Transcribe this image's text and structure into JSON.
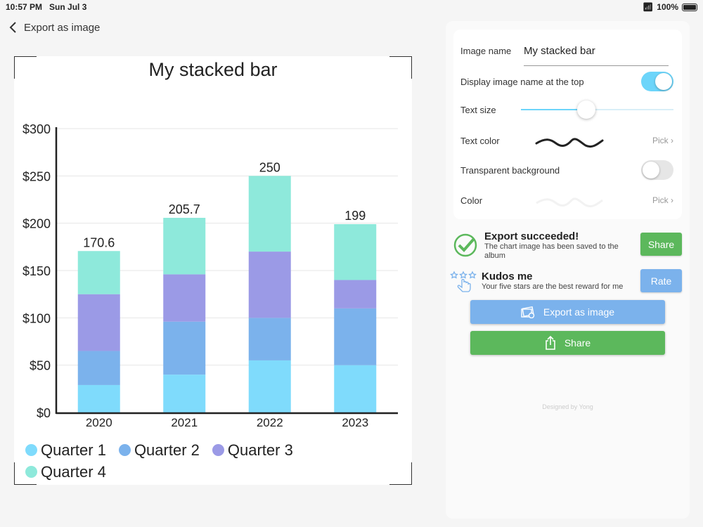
{
  "status": {
    "time": "10:57 PM",
    "date": "Sun Jul 3",
    "battery": "100%"
  },
  "nav": {
    "back_label": "Export as image"
  },
  "colors": {
    "q1": "#7fdbfc",
    "q2": "#7bb2ec",
    "q3": "#9b9ae6",
    "q4": "#8ee9db",
    "green": "#5cb85c",
    "blue": "#7bb2ec",
    "toggle_on": "#6dd5fa"
  },
  "chart_data": {
    "type": "bar",
    "stacked": true,
    "title": "My stacked bar",
    "categories": [
      "2020",
      "2021",
      "2022",
      "2023"
    ],
    "series": [
      {
        "name": "Quarter 1",
        "values": [
          29,
          40,
          55,
          50
        ]
      },
      {
        "name": "Quarter 2",
        "values": [
          36,
          56,
          45,
          60
        ]
      },
      {
        "name": "Quarter 3",
        "values": [
          60,
          50,
          70,
          30
        ]
      },
      {
        "name": "Quarter 4",
        "values": [
          45.6,
          59.7,
          80,
          59
        ]
      }
    ],
    "totals": [
      "170.6",
      "205.7",
      "250",
      "199"
    ],
    "ylim": [
      0,
      300
    ],
    "yticks": [
      0,
      50,
      100,
      150,
      200,
      250,
      300
    ],
    "ytick_labels": [
      "$0",
      "$50",
      "$100",
      "$150",
      "$200",
      "$250",
      "$300"
    ],
    "grid": true,
    "legend": "bottom"
  },
  "settings": {
    "image_name_label": "Image name",
    "image_name_value": "My stacked bar",
    "display_name_label": "Display image name at the top",
    "display_name_on": true,
    "text_size_label": "Text size",
    "text_size_value": 0.43,
    "text_color_label": "Text color",
    "pick_label": "Pick",
    "transparent_label": "Transparent background",
    "transparent_on": false,
    "color_label": "Color"
  },
  "export_msg": {
    "title": "Export succeeded!",
    "sub": "The chart image has been saved to the album",
    "button": "Share"
  },
  "kudos": {
    "title": "Kudos me",
    "sub": "Your five stars are the best reward for me",
    "button": "Rate"
  },
  "buttons": {
    "export": "Export as image",
    "share": "Share"
  },
  "footer": "Designed by Yong"
}
